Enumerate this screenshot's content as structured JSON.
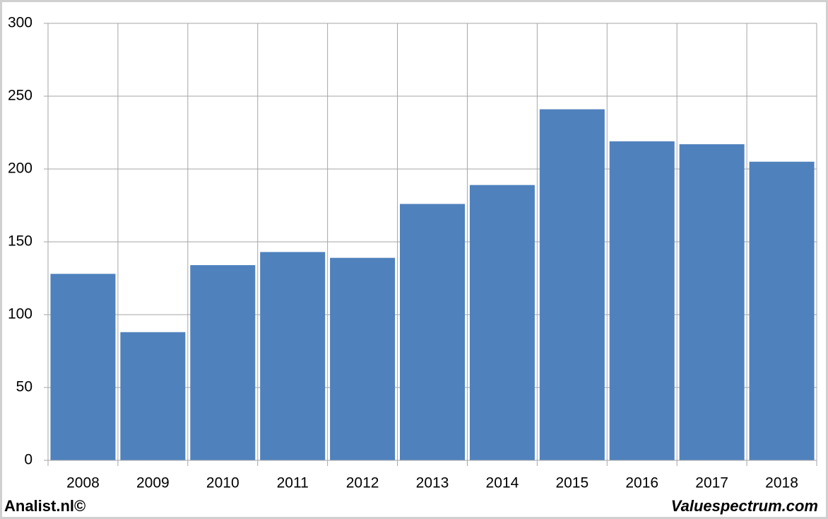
{
  "chart_data": {
    "type": "bar",
    "categories": [
      "2008",
      "2009",
      "2010",
      "2011",
      "2012",
      "2013",
      "2014",
      "2015",
      "2016",
      "2017",
      "2018"
    ],
    "values": [
      128,
      88,
      134,
      143,
      139,
      176,
      189,
      241,
      219,
      217,
      205
    ],
    "color": "#4f81bd",
    "ylim": [
      0,
      300
    ],
    "yticks": [
      0,
      50,
      100,
      150,
      200,
      250,
      300
    ],
    "grid": true
  },
  "footer": {
    "left": "Analist.nl©",
    "right": "Valuespectrum.com"
  }
}
